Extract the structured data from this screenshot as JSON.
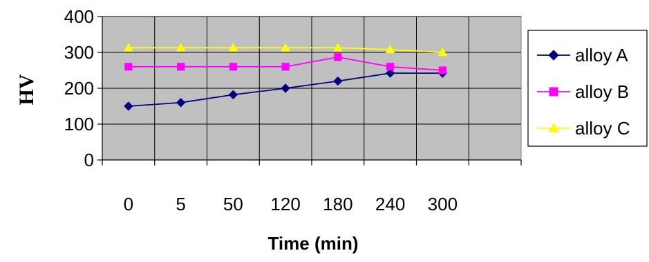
{
  "chart_data": {
    "type": "line",
    "title": "",
    "xlabel": "Time (min)",
    "ylabel": "HV",
    "categories": [
      "0",
      "5",
      "50",
      "120",
      "180",
      "240",
      "300"
    ],
    "category_slots": 8,
    "ylim": [
      0,
      400
    ],
    "yticks": [
      0,
      100,
      200,
      300,
      400
    ],
    "grid": true,
    "legend_position": "right",
    "plot_background": "#c0c0c0",
    "series": [
      {
        "name": "alloy A",
        "values": [
          150,
          160,
          182,
          200,
          220,
          242,
          242
        ],
        "color": "#000080",
        "marker": "diamond"
      },
      {
        "name": "alloy B",
        "values": [
          260,
          260,
          260,
          260,
          287,
          260,
          250
        ],
        "color": "#ff00ff",
        "marker": "square"
      },
      {
        "name": "alloy C",
        "values": [
          313,
          313,
          313,
          313,
          313,
          308,
          300
        ],
        "color": "#ffff00",
        "marker": "triangle"
      }
    ]
  }
}
